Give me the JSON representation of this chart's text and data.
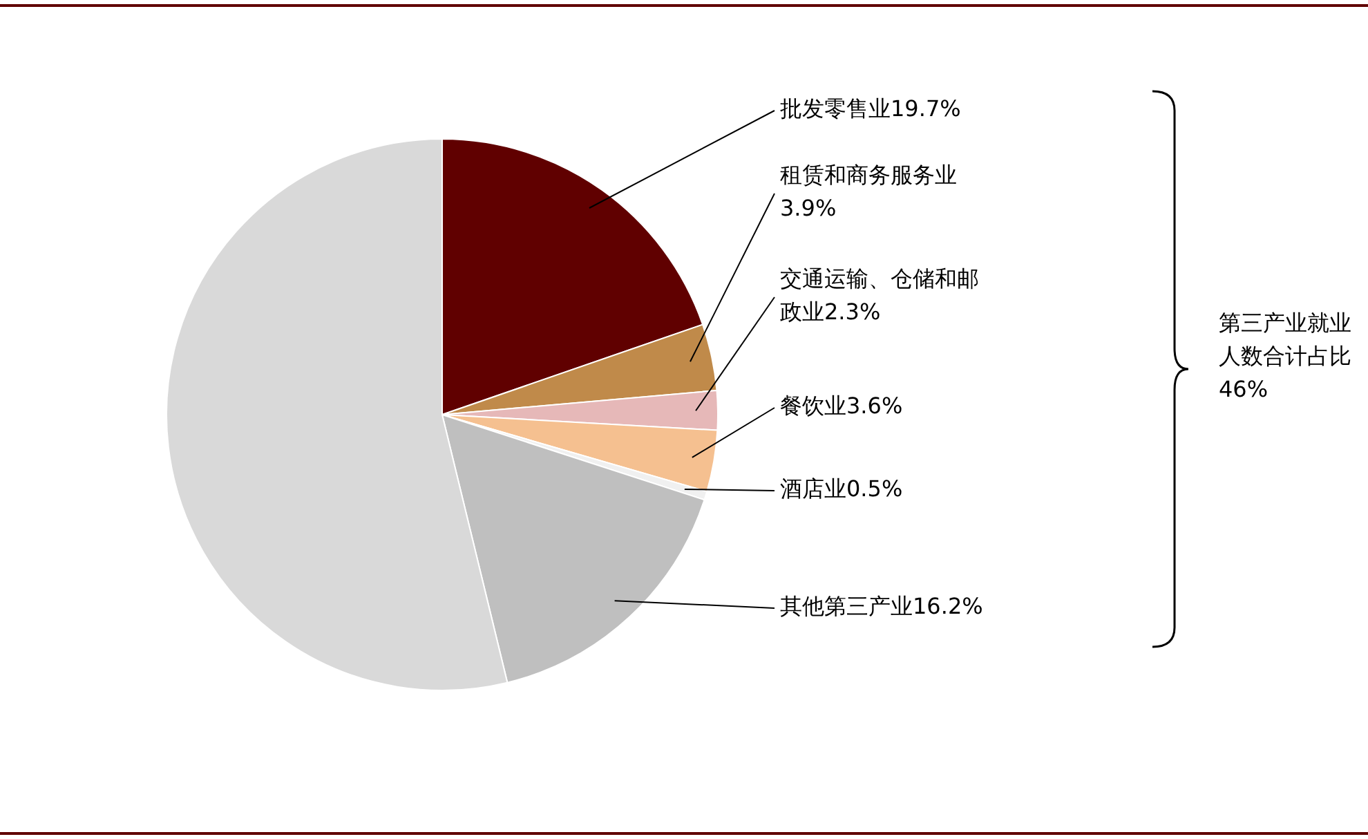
{
  "chart_data": {
    "type": "pie",
    "categories": [
      "批发零售业",
      "租赁和商务服务业",
      "交通运输、仓储和邮政业",
      "餐饮业",
      "酒店业",
      "其他第三产业",
      null
    ],
    "values": [
      19.7,
      3.9,
      2.3,
      3.6,
      0.5,
      16.2,
      53.8
    ],
    "value_labels": [
      "19.7%",
      "3.9%",
      "2.3%",
      "3.6%",
      "0.5%",
      "16.2%",
      null
    ],
    "colors": [
      "#600000",
      "#c08a4a",
      "#e6b8b8",
      "#f5c090",
      "#f0f0f0",
      "#bfbfbf",
      "#d9d9d9"
    ],
    "legend": false,
    "annotations": [
      "第三产业就业人数合计占比46%"
    ]
  }
}
